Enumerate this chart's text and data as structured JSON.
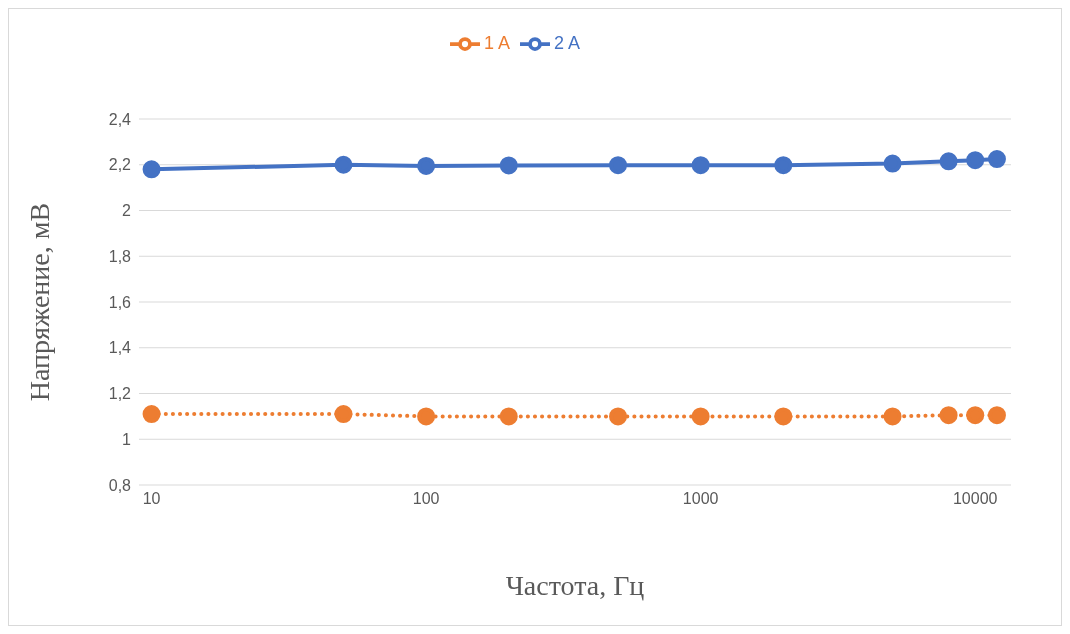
{
  "chart_data": {
    "type": "line",
    "xlabel": "Частота, Гц",
    "ylabel": "Напряжение, мВ",
    "x": [
      10,
      50,
      100,
      200,
      500,
      1000,
      2000,
      5000,
      8000,
      10000,
      12000
    ],
    "series": [
      {
        "name": "2 A",
        "color": "#4472c4",
        "line_style": "solid",
        "values": [
          2.18,
          2.2,
          2.195,
          2.197,
          2.198,
          2.198,
          2.198,
          2.205,
          2.215,
          2.22,
          2.225
        ]
      },
      {
        "name": "1 A",
        "color": "#ed7d31",
        "line_style": "dotted",
        "values": [
          1.11,
          1.11,
          1.1,
          1.1,
          1.1,
          1.1,
          1.1,
          1.1,
          1.105,
          1.105,
          1.105
        ]
      }
    ],
    "log": "x",
    "xlim": [
      9,
      13500
    ],
    "xticks": [
      10,
      100,
      1000,
      10000
    ],
    "ylim": [
      0.8,
      2.4
    ],
    "yticks": [
      {
        "value": 0.8,
        "label": "0,8"
      },
      1,
      {
        "value": 1.2,
        "label": "1,2"
      },
      {
        "value": 1.4,
        "label": "1,4"
      },
      {
        "value": 1.6,
        "label": "1,6"
      },
      {
        "value": 1.8,
        "label": "1,8"
      },
      2,
      {
        "value": 2.2,
        "label": "2,2"
      },
      {
        "value": 2.4,
        "label": "2,4"
      }
    ],
    "grid": "y",
    "legend": "top",
    "marker": "circle"
  }
}
